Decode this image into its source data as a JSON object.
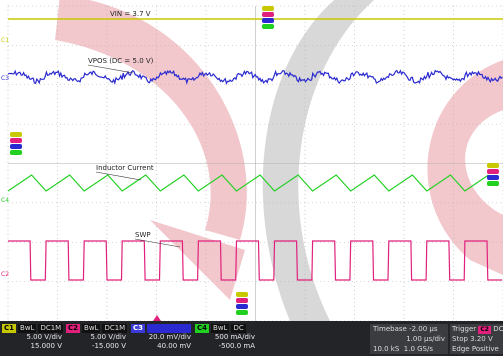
{
  "chart_data": {
    "type": "line",
    "divisions": {
      "x": 10,
      "y": 8
    },
    "channels": [
      {
        "id": "C1",
        "name": "C1",
        "color": "#c8c800",
        "label": "VIN = 3.7 V",
        "wave": "flat",
        "volts_per_div": "5.00 V/div",
        "offset": "15.000 V",
        "coupling": "DC1M",
        "bw": "BwL"
      },
      {
        "id": "C3",
        "name": "C3",
        "color": "#2a2ad0",
        "label": "VPOS (DC = 5.0 V)",
        "wave": "ripple",
        "volts_per_div": "20.0 mV/div",
        "offset": "40.00 mV",
        "coupling": "",
        "bw": ""
      },
      {
        "id": "C4",
        "name": "C4",
        "color": "#22d022",
        "label": "Inductor Current",
        "wave": "triangle",
        "volts_per_div": "500 mA/div",
        "offset": "-500.0 mA",
        "coupling": "DC",
        "bw": "BwL"
      },
      {
        "id": "C2",
        "name": "C2",
        "color": "#e0207c",
        "label": "SWP",
        "wave": "square",
        "volts_per_div": "5.00 V/div",
        "offset": "-15.000 V",
        "coupling": "DC1M",
        "bw": "BwL"
      }
    ],
    "switching_cycles": 13,
    "timebase": {
      "label": "Timebase",
      "position": "-2.00 µs",
      "per_div": "1.00 µs/div",
      "samples": "10.0 kS",
      "rate": "1.0 GS/s"
    },
    "trigger": {
      "label": "Trigger",
      "source": "C2",
      "coupling": "DC",
      "mode": "Stop",
      "level": "3.20 V",
      "type": "Edge",
      "slope": "Positive"
    }
  },
  "status_bar": {
    "c1": {
      "tag": "C1",
      "bw": "BwL",
      "coupling": "DC1M",
      "scale": "5.00 V/div",
      "offset": "15.000 V"
    },
    "c2": {
      "tag": "C2",
      "bw": "BwL",
      "coupling": "DC1M",
      "scale": "5.00 V/div",
      "offset": "-15.000 V"
    },
    "c3": {
      "tag": "C3",
      "scale": "20.0 mV/div",
      "offset": "40.00 mV"
    },
    "c4": {
      "tag": "C4",
      "bw": "BwL",
      "coupling": "DC",
      "scale": "500 mA/div",
      "offset": "-500.0 mA"
    },
    "timebase": {
      "label": "Timebase",
      "position": "-2.00 µs",
      "per_div": "1.00 µs/div",
      "samples": "10.0 kS",
      "rate": "1.0 GS/s"
    },
    "trigger": {
      "label": "Trigger",
      "source": "C2",
      "coupling": "DC",
      "mode": "Stop",
      "level": "3.20 V",
      "type": "Edge",
      "slope": "Positive"
    }
  },
  "colors": {
    "screen_bg": "#ffffff",
    "grid": "#b0b0b0",
    "watermark_red": "#e8a0a8",
    "watermark_gray": "#c0c0c0",
    "status_bg": "#222428"
  }
}
